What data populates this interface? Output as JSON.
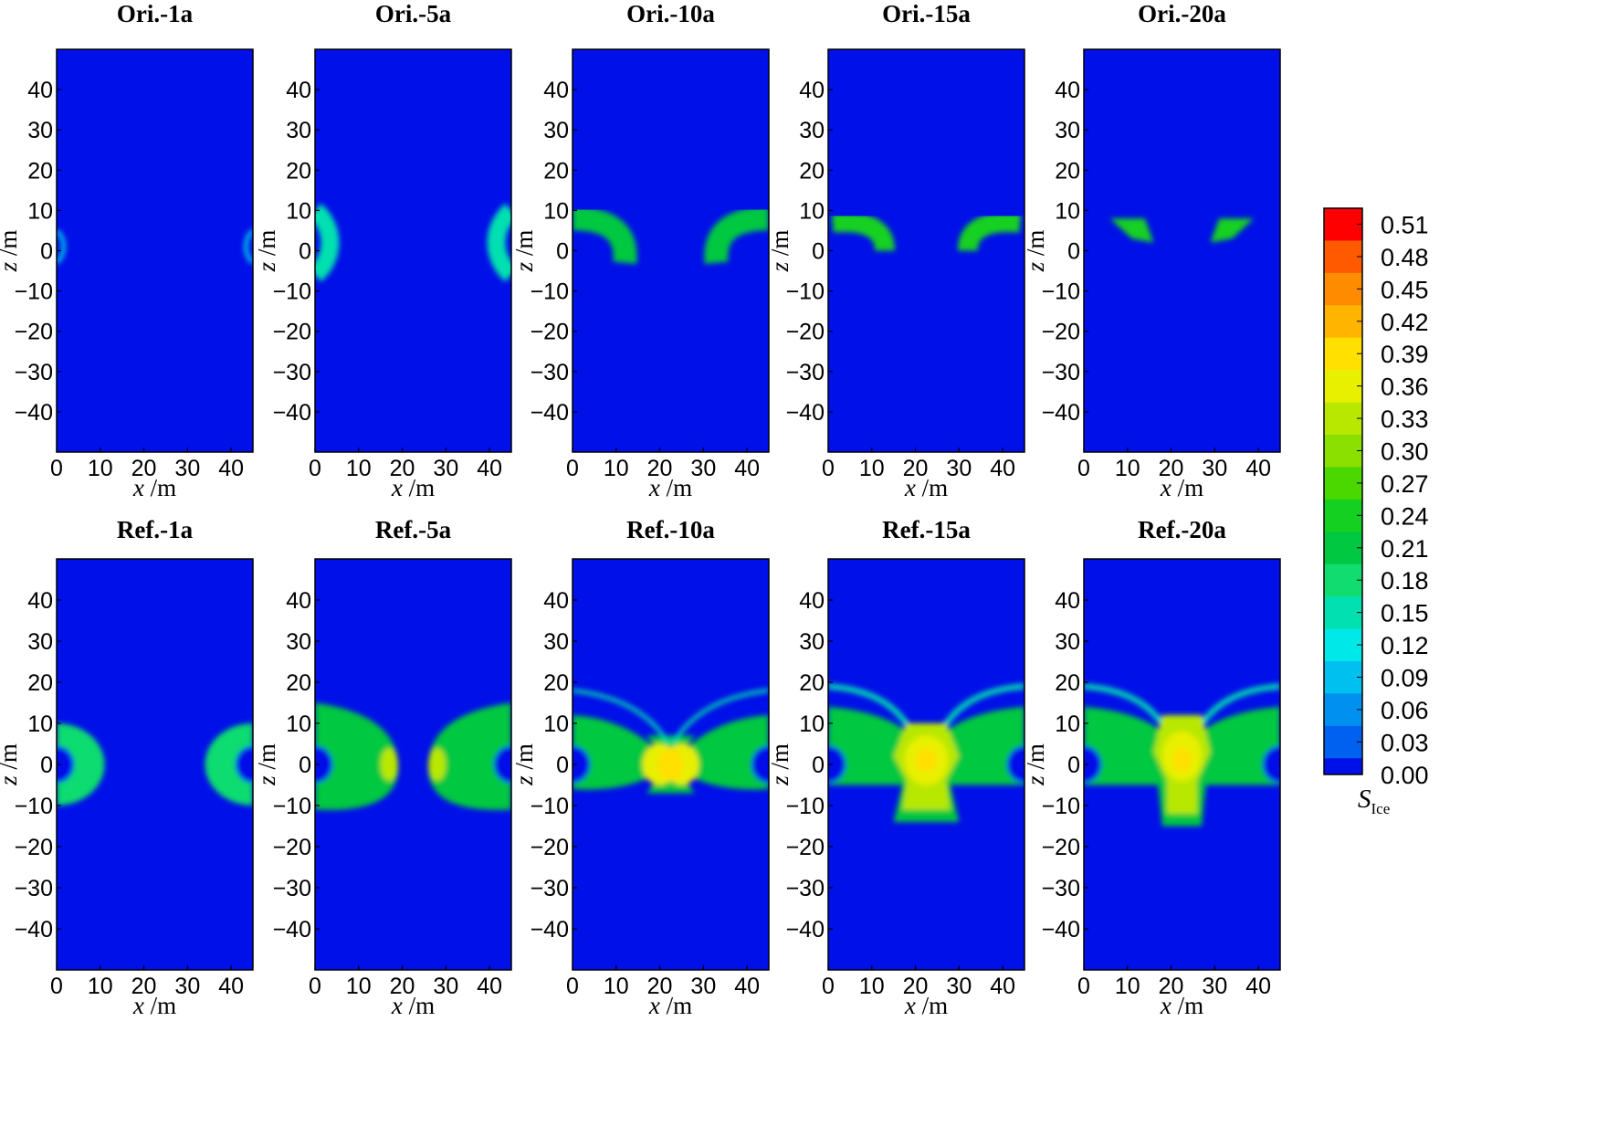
{
  "chart_data": {
    "type": "heatmap",
    "panels": [
      {
        "title": "Ori.-1a",
        "xlabel_var": "x",
        "xlabel_unit": "/m",
        "ylabel_var": "z",
        "ylabel_unit": "/m",
        "xlim": [
          0,
          45
        ],
        "ylim": [
          -50,
          50
        ],
        "xticks": [
          0,
          10,
          20,
          30,
          40
        ],
        "yticks": [
          40,
          30,
          20,
          10,
          0,
          -10,
          -20,
          -30,
          -40
        ]
      },
      {
        "title": "Ori.-5a",
        "xlabel_var": "x",
        "xlabel_unit": "/m",
        "ylabel_var": "z",
        "ylabel_unit": "/m",
        "xlim": [
          0,
          45
        ],
        "ylim": [
          -50,
          50
        ],
        "xticks": [
          0,
          10,
          20,
          30,
          40
        ],
        "yticks": [
          40,
          30,
          20,
          10,
          0,
          -10,
          -20,
          -30,
          -40
        ]
      },
      {
        "title": "Ori.-10a",
        "xlabel_var": "x",
        "xlabel_unit": "/m",
        "ylabel_var": "z",
        "ylabel_unit": "/m",
        "xlim": [
          0,
          45
        ],
        "ylim": [
          -50,
          50
        ],
        "xticks": [
          0,
          10,
          20,
          30,
          40
        ],
        "yticks": [
          40,
          30,
          20,
          10,
          0,
          -10,
          -20,
          -30,
          -40
        ]
      },
      {
        "title": "Ori.-15a",
        "xlabel_var": "x",
        "xlabel_unit": "/m",
        "ylabel_var": "z",
        "ylabel_unit": "/m",
        "xlim": [
          0,
          45
        ],
        "ylim": [
          -50,
          50
        ],
        "xticks": [
          0,
          10,
          20,
          30,
          40
        ],
        "yticks": [
          40,
          30,
          20,
          10,
          0,
          -10,
          -20,
          -30,
          -40
        ]
      },
      {
        "title": "Ori.-20a",
        "xlabel_var": "x",
        "xlabel_unit": "/m",
        "ylabel_var": "z",
        "ylabel_unit": "/m",
        "xlim": [
          0,
          45
        ],
        "ylim": [
          -50,
          50
        ],
        "xticks": [
          0,
          10,
          20,
          30,
          40
        ],
        "yticks": [
          40,
          30,
          20,
          10,
          0,
          -10,
          -20,
          -30,
          -40
        ]
      },
      {
        "title": "Ref.-1a",
        "xlabel_var": "x",
        "xlabel_unit": "/m",
        "ylabel_var": "z",
        "ylabel_unit": "/m",
        "xlim": [
          0,
          45
        ],
        "ylim": [
          -50,
          50
        ],
        "xticks": [
          0,
          10,
          20,
          30,
          40
        ],
        "yticks": [
          40,
          30,
          20,
          10,
          0,
          -10,
          -20,
          -30,
          -40
        ]
      },
      {
        "title": "Ref.-5a",
        "xlabel_var": "x",
        "xlabel_unit": "/m",
        "ylabel_var": "z",
        "ylabel_unit": "/m",
        "xlim": [
          0,
          45
        ],
        "ylim": [
          -50,
          50
        ],
        "xticks": [
          0,
          10,
          20,
          30,
          40
        ],
        "yticks": [
          40,
          30,
          20,
          10,
          0,
          -10,
          -20,
          -30,
          -40
        ]
      },
      {
        "title": "Ref.-10a",
        "xlabel_var": "x",
        "xlabel_unit": "/m",
        "ylabel_var": "z",
        "ylabel_unit": "/m",
        "xlim": [
          0,
          45
        ],
        "ylim": [
          -50,
          50
        ],
        "xticks": [
          0,
          10,
          20,
          30,
          40
        ],
        "yticks": [
          40,
          30,
          20,
          10,
          0,
          -10,
          -20,
          -30,
          -40
        ]
      },
      {
        "title": "Ref.-15a",
        "xlabel_var": "x",
        "xlabel_unit": "/m",
        "ylabel_var": "z",
        "ylabel_unit": "/m",
        "xlim": [
          0,
          45
        ],
        "ylim": [
          -50,
          50
        ],
        "xticks": [
          0,
          10,
          20,
          30,
          40
        ],
        "yticks": [
          40,
          30,
          20,
          10,
          0,
          -10,
          -20,
          -30,
          -40
        ]
      },
      {
        "title": "Ref.-20a",
        "xlabel_var": "x",
        "xlabel_unit": "/m",
        "ylabel_var": "z",
        "ylabel_unit": "/m",
        "xlim": [
          0,
          45
        ],
        "ylim": [
          -50,
          50
        ],
        "xticks": [
          0,
          10,
          20,
          30,
          40
        ],
        "yticks": [
          40,
          30,
          20,
          10,
          0,
          -10,
          -20,
          -30,
          -40
        ]
      }
    ],
    "colorbar": {
      "label_main": "S",
      "label_sub": "Ice",
      "levels": [
        "0.51",
        "0.48",
        "0.45",
        "0.42",
        "0.39",
        "0.36",
        "0.33",
        "0.30",
        "0.27",
        "0.24",
        "0.21",
        "0.18",
        "0.15",
        "0.12",
        "0.09",
        "0.06",
        "0.03",
        "0.00"
      ],
      "colors": [
        "#ff0000",
        "#ff5a00",
        "#ff8c00",
        "#ffb400",
        "#ffe000",
        "#e8f000",
        "#b8e800",
        "#8ce000",
        "#4ad800",
        "#14d020",
        "#00c840",
        "#10dc70",
        "#00e0b0",
        "#00e8e8",
        "#00c0f0",
        "#0090f0",
        "#0060f0",
        "#0010e8"
      ]
    },
    "background_color": "#0010e8"
  }
}
